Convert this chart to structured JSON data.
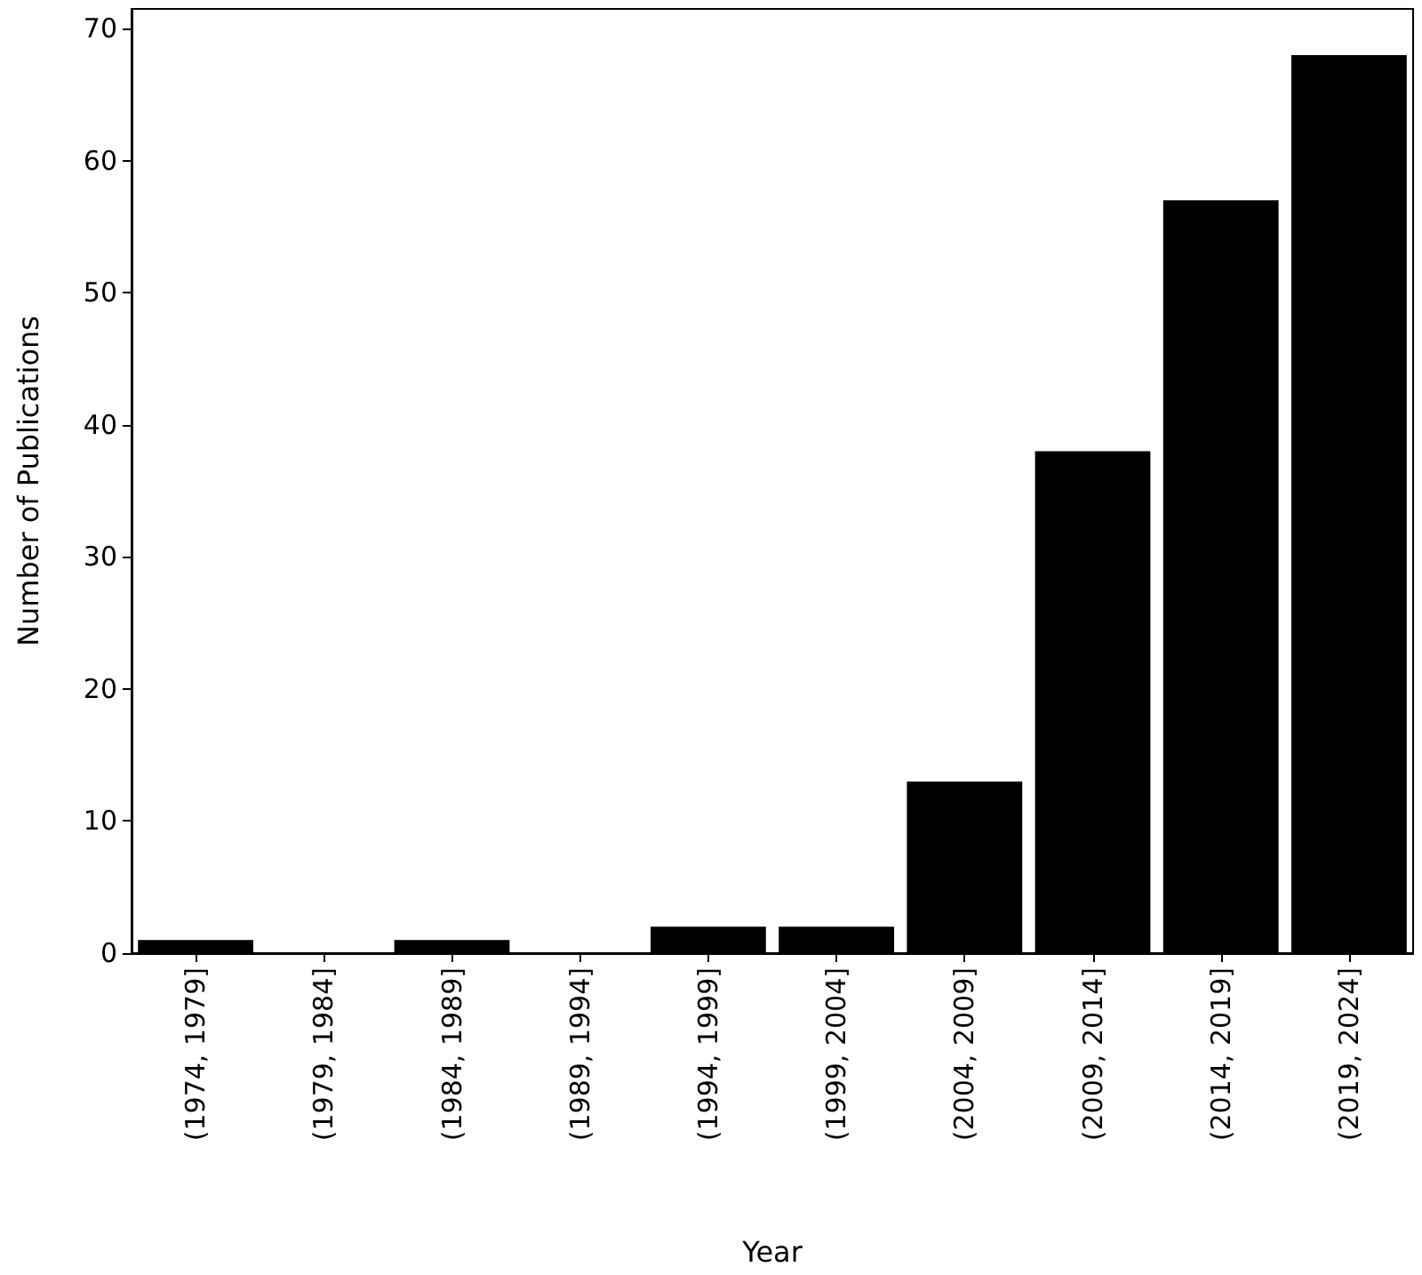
{
  "chart_data": {
    "type": "bar",
    "xlabel": "Year",
    "ylabel": "Number of Publications",
    "categories": [
      "(1974, 1979]",
      "(1979, 1984]",
      "(1984, 1989]",
      "(1989, 1994]",
      "(1994, 1999]",
      "(1999, 2004]",
      "(2004, 2009]",
      "(2009, 2014]",
      "(2014, 2019]",
      "(2019, 2024]"
    ],
    "values": [
      1,
      0,
      1,
      0,
      2,
      2,
      13,
      38,
      57,
      68
    ],
    "color": "#000000",
    "ylim": [
      0,
      71.5
    ],
    "yticks": [
      0,
      10,
      20,
      30,
      40,
      50,
      60,
      70
    ],
    "grid": false
  }
}
